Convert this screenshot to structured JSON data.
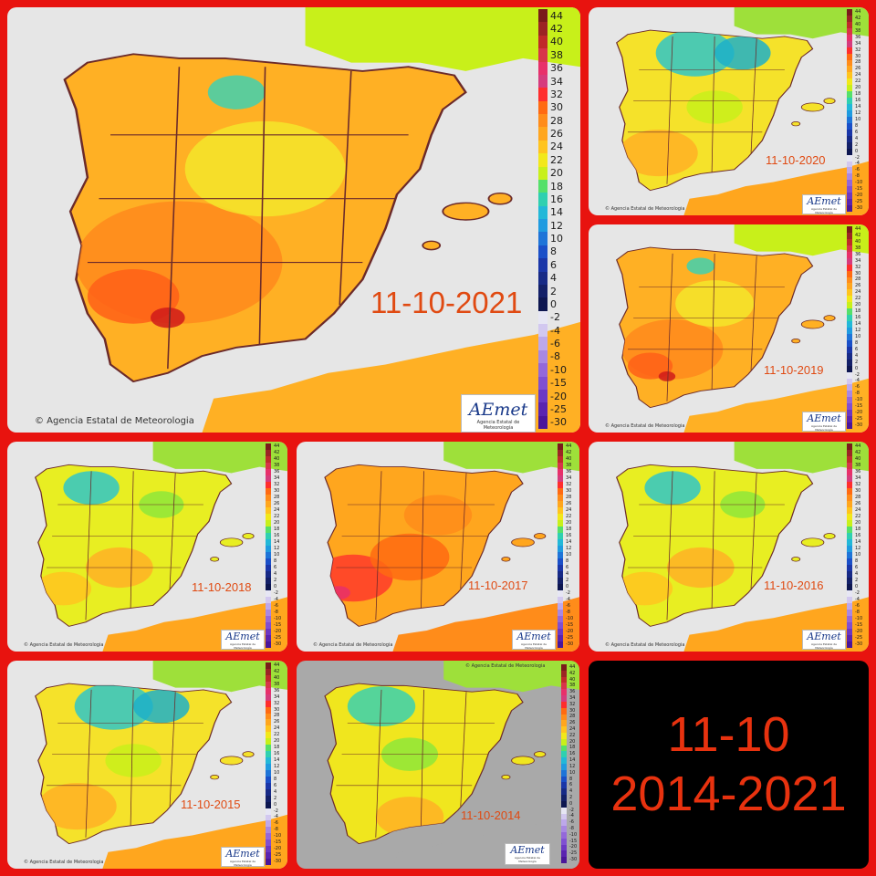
{
  "panels": [
    {
      "id": "p2021",
      "date": "11-10-2021",
      "scheme": "hot"
    },
    {
      "id": "p2020",
      "date": "11-10-2020",
      "scheme": "cool"
    },
    {
      "id": "p2019",
      "date": "11-10-2019",
      "scheme": "hot"
    },
    {
      "id": "p2018",
      "date": "11-10-2018",
      "scheme": "mild"
    },
    {
      "id": "p2017",
      "date": "11-10-2017",
      "scheme": "veryhot"
    },
    {
      "id": "p2016",
      "date": "11-10-2016",
      "scheme": "mild"
    },
    {
      "id": "p2015",
      "date": "11-10-2015",
      "scheme": "cool"
    },
    {
      "id": "p2014",
      "date": "11-10-2014",
      "scheme": "grey"
    }
  ],
  "legend_labels": [
    "44",
    "42",
    "40",
    "38",
    "36",
    "34",
    "32",
    "30",
    "28",
    "26",
    "24",
    "22",
    "20",
    "18",
    "16",
    "14",
    "12",
    "10",
    "8",
    "6",
    "4",
    "2",
    "0",
    "-2",
    "-4",
    "-6",
    "-8",
    "-10",
    "-15",
    "-20",
    "-25",
    "-30"
  ],
  "legend_colors": [
    "#7a1b1b",
    "#9c2424",
    "#c02a2a",
    "#d8344a",
    "#e8306a",
    "#d63b7d",
    "#ff2d2d",
    "#ff6a12",
    "#ff8c1a",
    "#ffa61e",
    "#ffc41e",
    "#f2e81a",
    "#c8f01a",
    "#55e06a",
    "#2fd0b0",
    "#22b8d8",
    "#1f9be0",
    "#1e74d8",
    "#1a4fc8",
    "#1a36a8",
    "#172a86",
    "#132068",
    "#0d1650",
    "#e6e6f4",
    "#d2c8f0",
    "#bda8ea",
    "#a888e2",
    "#9468da",
    "#8050d2",
    "#6c38c4",
    "#5a24b0",
    "#4a169a"
  ],
  "logo": {
    "word": "AEmet",
    "sub": "Agencia Estatal de Meteorología"
  },
  "credit": "© Agencia Estatal de Meteorologia",
  "summary": {
    "line1": "11-10",
    "line2": "2014-2021"
  }
}
